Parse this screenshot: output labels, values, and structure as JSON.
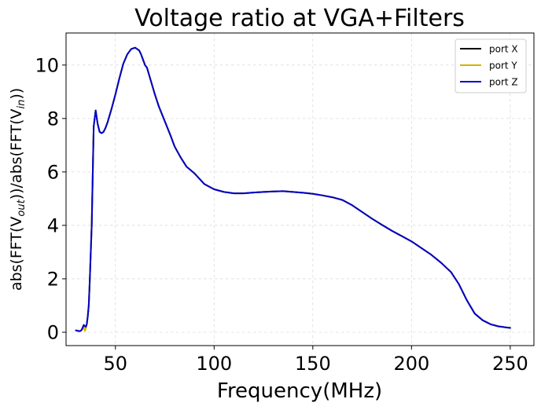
{
  "chart_data": {
    "type": "line",
    "title": "Voltage ratio at VGA+Filters",
    "xlabel": "Frequency(MHz)",
    "ylabel": {
      "parts": [
        {
          "text": "abs(FFT(V",
          "sub": false
        },
        {
          "text": "out",
          "sub": true
        },
        {
          "text": "))/abs(FFT(V",
          "sub": false
        },
        {
          "text": "in",
          "sub": true
        },
        {
          "text": "))",
          "sub": false
        }
      ]
    },
    "xlim": [
      25,
      262
    ],
    "ylim": [
      -0.5,
      11.2
    ],
    "xticks": [
      50,
      100,
      150,
      200,
      250
    ],
    "xtick_labels": [
      "50",
      "100",
      "150",
      "200",
      "250"
    ],
    "yticks": [
      0,
      2,
      4,
      6,
      8,
      10
    ],
    "ytick_labels": [
      "0",
      "2",
      "4",
      "6",
      "8",
      "10"
    ],
    "grid": true,
    "legend_position": "top-right",
    "series": [
      {
        "name": "port X",
        "color": "#000000",
        "x": [
          30,
          31,
          32,
          32.5,
          33,
          34,
          35,
          35.5,
          36,
          36.5,
          37,
          38,
          39,
          40,
          41,
          42,
          43,
          44,
          45,
          46,
          48,
          50,
          52,
          54,
          56,
          58,
          60,
          61,
          62,
          63,
          64,
          65,
          66,
          68,
          70,
          72,
          75,
          78,
          80,
          83,
          86,
          90,
          95,
          100,
          105,
          110,
          115,
          120,
          125,
          130,
          135,
          140,
          145,
          150,
          155,
          160,
          165,
          170,
          175,
          180,
          185,
          190,
          195,
          200,
          205,
          210,
          215,
          220,
          224,
          228,
          232,
          236,
          240,
          244,
          248,
          250
        ],
        "y": [
          0.07,
          0.05,
          0.04,
          0.06,
          0.1,
          0.27,
          0.2,
          0.3,
          0.6,
          1.0,
          1.9,
          4.0,
          7.7,
          8.3,
          7.8,
          7.5,
          7.45,
          7.5,
          7.65,
          7.85,
          8.35,
          8.9,
          9.5,
          10.05,
          10.4,
          10.6,
          10.65,
          10.6,
          10.55,
          10.4,
          10.2,
          10.0,
          9.9,
          9.4,
          8.9,
          8.45,
          7.9,
          7.35,
          6.95,
          6.55,
          6.2,
          5.95,
          5.55,
          5.35,
          5.25,
          5.2,
          5.2,
          5.23,
          5.25,
          5.27,
          5.28,
          5.25,
          5.22,
          5.18,
          5.12,
          5.05,
          4.95,
          4.75,
          4.5,
          4.25,
          4.02,
          3.8,
          3.6,
          3.4,
          3.15,
          2.9,
          2.6,
          2.25,
          1.8,
          1.2,
          0.7,
          0.45,
          0.3,
          0.22,
          0.18,
          0.16
        ]
      },
      {
        "name": "port Y",
        "color": "#d4b400",
        "x": [
          30,
          31,
          32,
          33,
          34,
          34.5,
          35,
          35.5,
          36,
          36.5,
          37,
          38,
          39,
          40,
          41,
          42,
          43,
          44,
          45,
          46,
          48,
          50,
          52,
          54,
          56,
          58,
          60,
          61,
          62,
          63,
          64,
          65,
          66,
          68,
          70,
          72,
          75,
          78,
          80,
          83,
          86,
          90,
          95,
          100,
          105,
          110,
          115,
          120,
          125,
          130,
          135,
          140,
          145,
          150,
          155,
          160,
          165,
          170,
          175,
          180,
          185,
          190,
          195,
          200,
          205,
          210,
          215,
          220,
          224,
          228,
          232,
          236,
          240,
          244,
          248,
          250
        ],
        "y": [
          0.07,
          0.05,
          0.04,
          0.08,
          0.2,
          0.05,
          0.12,
          0.3,
          0.6,
          1.0,
          1.9,
          4.0,
          7.7,
          8.3,
          7.8,
          7.5,
          7.45,
          7.5,
          7.65,
          7.85,
          8.35,
          8.9,
          9.5,
          10.05,
          10.4,
          10.6,
          10.65,
          10.6,
          10.55,
          10.4,
          10.2,
          10.0,
          9.9,
          9.4,
          8.9,
          8.45,
          7.9,
          7.35,
          6.95,
          6.55,
          6.2,
          5.95,
          5.55,
          5.35,
          5.25,
          5.2,
          5.2,
          5.23,
          5.25,
          5.27,
          5.28,
          5.25,
          5.22,
          5.18,
          5.12,
          5.05,
          4.95,
          4.75,
          4.5,
          4.25,
          4.02,
          3.8,
          3.6,
          3.4,
          3.15,
          2.9,
          2.6,
          2.25,
          1.8,
          1.2,
          0.7,
          0.45,
          0.3,
          0.22,
          0.18,
          0.16
        ]
      },
      {
        "name": "port Z",
        "color": "#0000cc",
        "x": [
          30,
          31,
          32,
          32.5,
          33,
          34,
          35,
          35.5,
          36,
          36.5,
          37,
          38,
          39,
          40,
          41,
          42,
          43,
          44,
          45,
          46,
          48,
          50,
          52,
          54,
          56,
          58,
          60,
          61,
          62,
          63,
          64,
          65,
          66,
          68,
          70,
          72,
          75,
          78,
          80,
          83,
          86,
          90,
          95,
          100,
          105,
          110,
          115,
          120,
          125,
          130,
          135,
          140,
          145,
          150,
          155,
          160,
          165,
          170,
          175,
          180,
          185,
          190,
          195,
          200,
          205,
          210,
          215,
          220,
          224,
          228,
          232,
          236,
          240,
          244,
          248,
          250
        ],
        "y": [
          0.07,
          0.05,
          0.04,
          0.06,
          0.1,
          0.27,
          0.2,
          0.3,
          0.6,
          1.0,
          1.9,
          4.0,
          7.7,
          8.3,
          7.8,
          7.5,
          7.45,
          7.5,
          7.65,
          7.85,
          8.35,
          8.9,
          9.5,
          10.05,
          10.4,
          10.6,
          10.65,
          10.6,
          10.55,
          10.4,
          10.2,
          10.0,
          9.9,
          9.4,
          8.9,
          8.45,
          7.9,
          7.35,
          6.95,
          6.55,
          6.2,
          5.95,
          5.55,
          5.35,
          5.25,
          5.2,
          5.2,
          5.23,
          5.25,
          5.27,
          5.28,
          5.25,
          5.22,
          5.18,
          5.12,
          5.05,
          4.95,
          4.75,
          4.5,
          4.25,
          4.02,
          3.8,
          3.6,
          3.4,
          3.15,
          2.9,
          2.6,
          2.25,
          1.8,
          1.2,
          0.7,
          0.45,
          0.3,
          0.22,
          0.18,
          0.16
        ]
      }
    ]
  }
}
